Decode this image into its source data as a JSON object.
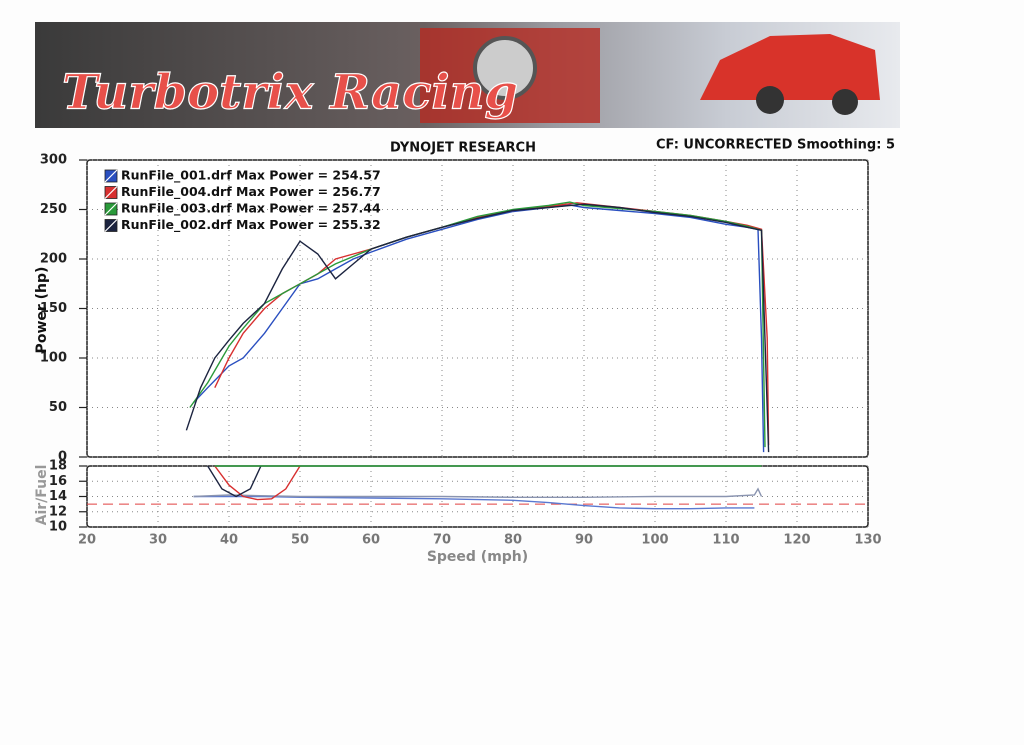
{
  "header": {
    "banner": "Turbotrix Racing",
    "title": "DYNOJET RESEARCH",
    "settings": "CF: UNCORRECTED  Smoothing: 5"
  },
  "chart_data": [
    {
      "type": "line",
      "ylabel": "Power (hp)",
      "xlim": [
        20,
        130
      ],
      "xticks": [
        20,
        30,
        40,
        50,
        60,
        70,
        80,
        90,
        100,
        110,
        120,
        130
      ],
      "ylim": [
        0,
        300
      ],
      "yticks": [
        0,
        50,
        100,
        150,
        200,
        250,
        300
      ],
      "grid": true,
      "legend": "upper left",
      "series": [
        {
          "name": "RunFile_001.drf Max Power = 254.57",
          "color": "#2a4fc0",
          "x": [
            35,
            37,
            40,
            42,
            45,
            47.5,
            50,
            52.5,
            55,
            57.5,
            60,
            65,
            70,
            75,
            80,
            85,
            88,
            90,
            95,
            100,
            105,
            110,
            113,
            114.5,
            115,
            115.3
          ],
          "values": [
            55,
            70,
            92,
            100,
            125,
            150,
            175,
            180,
            190,
            200,
            207,
            220,
            230,
            240,
            248,
            252,
            254.57,
            252,
            249,
            246,
            242,
            235,
            232,
            230,
            120,
            5
          ]
        },
        {
          "name": "RunFile_004.drf Max Power = 256.77",
          "color": "#d83030",
          "x": [
            38,
            40,
            42,
            45,
            47.5,
            50,
            52.5,
            55,
            57.5,
            60,
            65,
            70,
            75,
            80,
            85,
            89,
            95,
            100,
            105,
            110,
            113,
            115,
            115.8,
            116
          ],
          "values": [
            70,
            100,
            125,
            150,
            165,
            175,
            185,
            200,
            205,
            210,
            222,
            232,
            242,
            249,
            253,
            256.77,
            252,
            248,
            244,
            238,
            234,
            230,
            120,
            12
          ]
        },
        {
          "name": "RunFile_003.drf Max Power = 257.44",
          "color": "#2a9a3a",
          "x": [
            34.5,
            37,
            40,
            42,
            45,
            47.5,
            50,
            55,
            60,
            65,
            70,
            75,
            80,
            85,
            88,
            90,
            95,
            100,
            105,
            110,
            113,
            115,
            115.5
          ],
          "values": [
            50,
            75,
            112,
            130,
            155,
            165,
            175,
            195,
            210,
            222,
            232,
            243,
            250,
            254,
            257.44,
            254,
            251,
            248,
            244,
            238,
            233,
            229,
            10
          ]
        },
        {
          "name": "RunFile_002.drf Max Power = 255.32",
          "color": "#1c2440",
          "x": [
            34,
            36,
            38,
            40,
            42,
            45,
            47.5,
            50,
            52.5,
            55,
            57.5,
            60,
            65,
            70,
            75,
            80,
            85,
            90,
            95,
            100,
            105,
            110,
            113,
            115,
            116
          ],
          "values": [
            27,
            70,
            100,
            118,
            135,
            155,
            190,
            218,
            205,
            180,
            195,
            210,
            222,
            232,
            241,
            249,
            252,
            255.32,
            252,
            247,
            243,
            237,
            232,
            229,
            5
          ]
        }
      ]
    },
    {
      "type": "line",
      "ylabel": "Air/Fuel",
      "xlabel": "Speed (mph)",
      "xlim": [
        20,
        130
      ],
      "xticks": [
        20,
        30,
        40,
        50,
        60,
        70,
        80,
        90,
        100,
        110,
        120,
        130
      ],
      "ylim": [
        10,
        18
      ],
      "yticks": [
        10,
        12,
        14,
        16,
        18
      ],
      "grid": true,
      "reference": {
        "value": 13,
        "color": "#e04040",
        "dashed": true
      },
      "series": [
        {
          "color": "#5a78d0",
          "x": [
            35,
            40,
            45,
            50,
            60,
            70,
            80,
            85,
            90,
            95,
            100,
            105,
            110,
            114
          ],
          "values": [
            14,
            14,
            14,
            13.9,
            13.8,
            13.7,
            13.5,
            13.2,
            12.8,
            12.5,
            12.4,
            12.4,
            12.5,
            12.5
          ]
        },
        {
          "color": "#8a94b0",
          "x": [
            35,
            40,
            50,
            60,
            70,
            80,
            90,
            100,
            110,
            114,
            114.5,
            115
          ],
          "values": [
            14,
            14.2,
            14,
            14,
            14,
            13.9,
            13.9,
            14,
            14,
            14.2,
            15,
            14
          ]
        },
        {
          "color": "#d83030",
          "x": [
            38,
            40,
            42,
            44,
            46,
            48,
            50
          ],
          "values": [
            18,
            15.5,
            14,
            13.6,
            13.7,
            15,
            18
          ]
        },
        {
          "color": "#1c2440",
          "x": [
            37,
            39,
            41,
            43,
            44.5
          ],
          "values": [
            18,
            15,
            14,
            15,
            18
          ]
        },
        {
          "color": "#2a9a3a",
          "x": [
            38,
            60,
            80,
            100,
            115
          ],
          "values": [
            18,
            18,
            18,
            18,
            18
          ]
        }
      ]
    }
  ]
}
